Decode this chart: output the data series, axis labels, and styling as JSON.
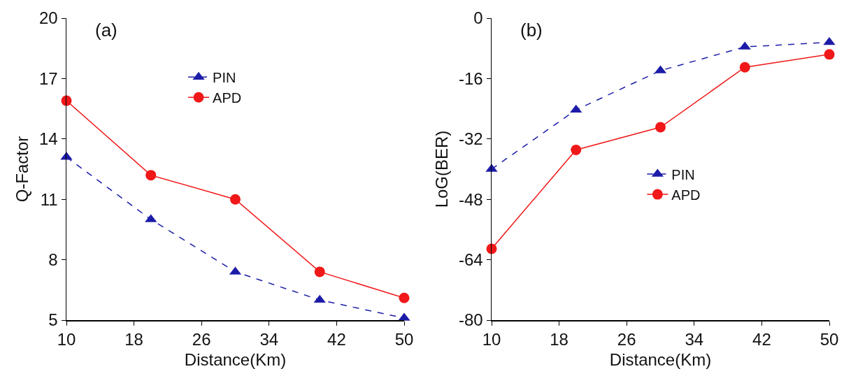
{
  "chart_data": [
    {
      "type": "line",
      "annotations": [
        "(a)"
      ],
      "xlabel": "Distance(Km)",
      "ylabel": "Q-Factor",
      "x": [
        10,
        20,
        30,
        40,
        50
      ],
      "xlim": [
        10,
        50
      ],
      "xticks": [
        10,
        18,
        26,
        34,
        42,
        50
      ],
      "ylim": [
        5,
        20
      ],
      "yticks": [
        5,
        8,
        11,
        14,
        17,
        20
      ],
      "grid": false,
      "legend": "top",
      "series": [
        {
          "name": "PIN",
          "color": "#1c1ca8",
          "values": [
            13.1,
            10.0,
            7.4,
            6.0,
            5.1
          ],
          "marker": "triangle",
          "line_style": "dashed"
        },
        {
          "name": "APD",
          "color": "#f01818",
          "values": [
            15.9,
            12.2,
            11.0,
            7.4,
            6.1
          ],
          "marker": "circle",
          "line_style": "solid"
        }
      ]
    },
    {
      "type": "line",
      "annotations": [
        "(b)"
      ],
      "xlabel": "Distance(Km)",
      "ylabel": "LoG(BER)",
      "x": [
        10,
        20,
        30,
        40,
        50
      ],
      "xlim": [
        10,
        50
      ],
      "xticks": [
        10,
        18,
        26,
        34,
        42,
        50
      ],
      "ylim": [
        -80,
        0
      ],
      "yticks": [
        -80,
        -64,
        -48,
        -32,
        -16,
        0
      ],
      "grid": false,
      "legend": "right",
      "series": [
        {
          "name": "PIN",
          "color": "#1c1ca8",
          "values": [
            -40.0,
            -24.3,
            -13.9,
            -7.6,
            -6.4
          ],
          "marker": "triangle",
          "line_style": "dashed"
        },
        {
          "name": "APD",
          "color": "#f01818",
          "values": [
            -61.1,
            -34.9,
            -28.9,
            -13.0,
            -9.6
          ],
          "marker": "circle",
          "line_style": "solid"
        }
      ]
    }
  ]
}
